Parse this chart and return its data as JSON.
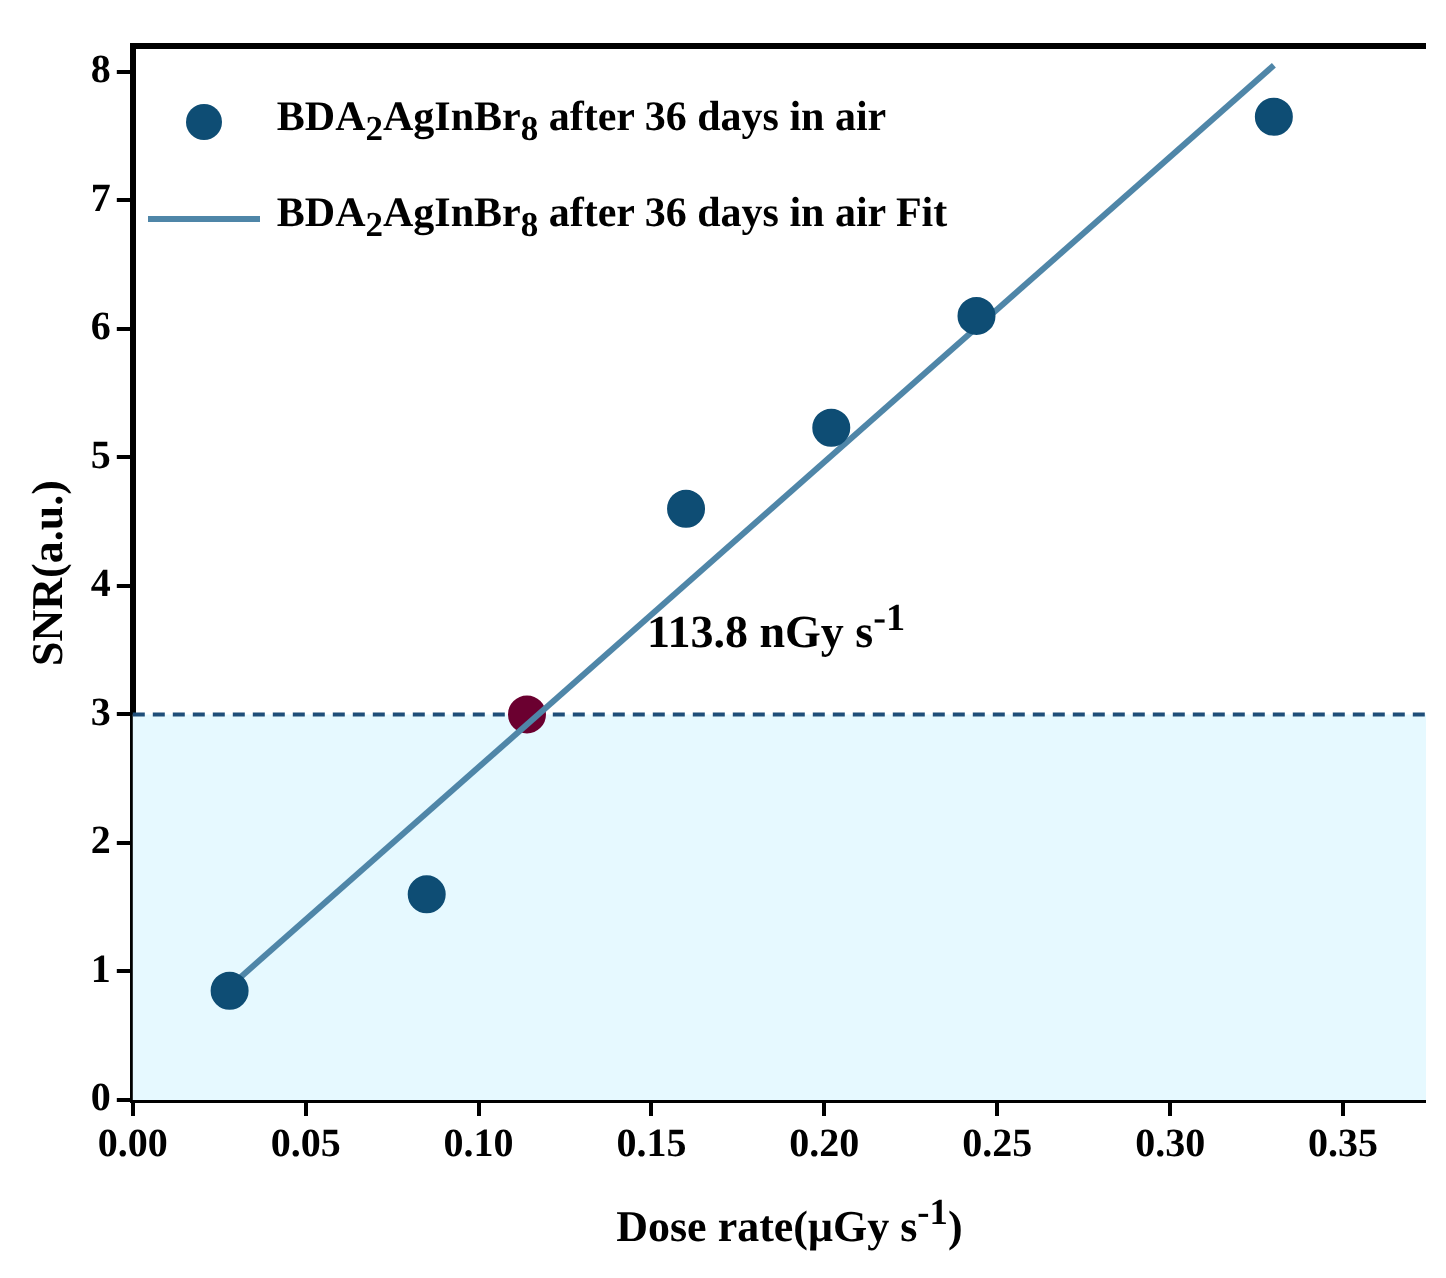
{
  "chart_data": {
    "type": "scatter",
    "xlabel": "Dose rate(μGy s$^{-1}$)",
    "ylabel": "SNR(a.u.)",
    "series": [
      {
        "name": "BDA$_{2}$AgInBr$_{8}$ after 36 days in air",
        "color": "#0e4d74",
        "x": [
          0.028,
          0.085,
          0.16,
          0.202,
          0.244,
          0.33
        ],
        "values": [
          0.85,
          1.6,
          4.6,
          5.23,
          6.1,
          7.65
        ]
      },
      {
        "name": "BDA$_{2}$AgInBr$_{8}$ after 36 days in air Fit",
        "type": "line",
        "marker": "none",
        "color": "#4f86a8",
        "x": [
          0.028,
          0.33
        ],
        "values": [
          0.88,
          8.05
        ]
      },
      {
        "color": "#6b0030",
        "x": [
          0.114
        ],
        "values": [
          3
        ]
      }
    ],
    "xlim": [
      0,
      0.374
    ],
    "ylim": [
      0,
      8.2
    ],
    "xticks": [
      {
        "value": 0,
        "label": "0.00"
      },
      {
        "value": 0.05,
        "label": "0.05"
      },
      {
        "value": 0.1,
        "label": "0.10"
      },
      {
        "value": 0.15,
        "label": "0.15"
      },
      {
        "value": 0.2,
        "label": "0.20"
      },
      {
        "value": 0.25,
        "label": "0.25"
      },
      {
        "value": 0.3,
        "label": "0.30"
      },
      {
        "value": 0.35,
        "label": "0.35"
      }
    ],
    "yticks": [
      0,
      1,
      2,
      3,
      4,
      5,
      6,
      7,
      8
    ],
    "ref_lines": [
      {
        "axis": "y",
        "value": 3,
        "color": "#1f4e79",
        "line_style": "dashed"
      }
    ],
    "bands": [
      {
        "axis": "y",
        "from": 0,
        "to": 3,
        "color": "#e6f9ff"
      }
    ],
    "annotations": [
      {
        "text": "113.8 nGy s$^{-1}$",
        "x": 0.114,
        "y": 3
      }
    ],
    "grid": false,
    "legend": "top left",
    "marker": "circle"
  }
}
